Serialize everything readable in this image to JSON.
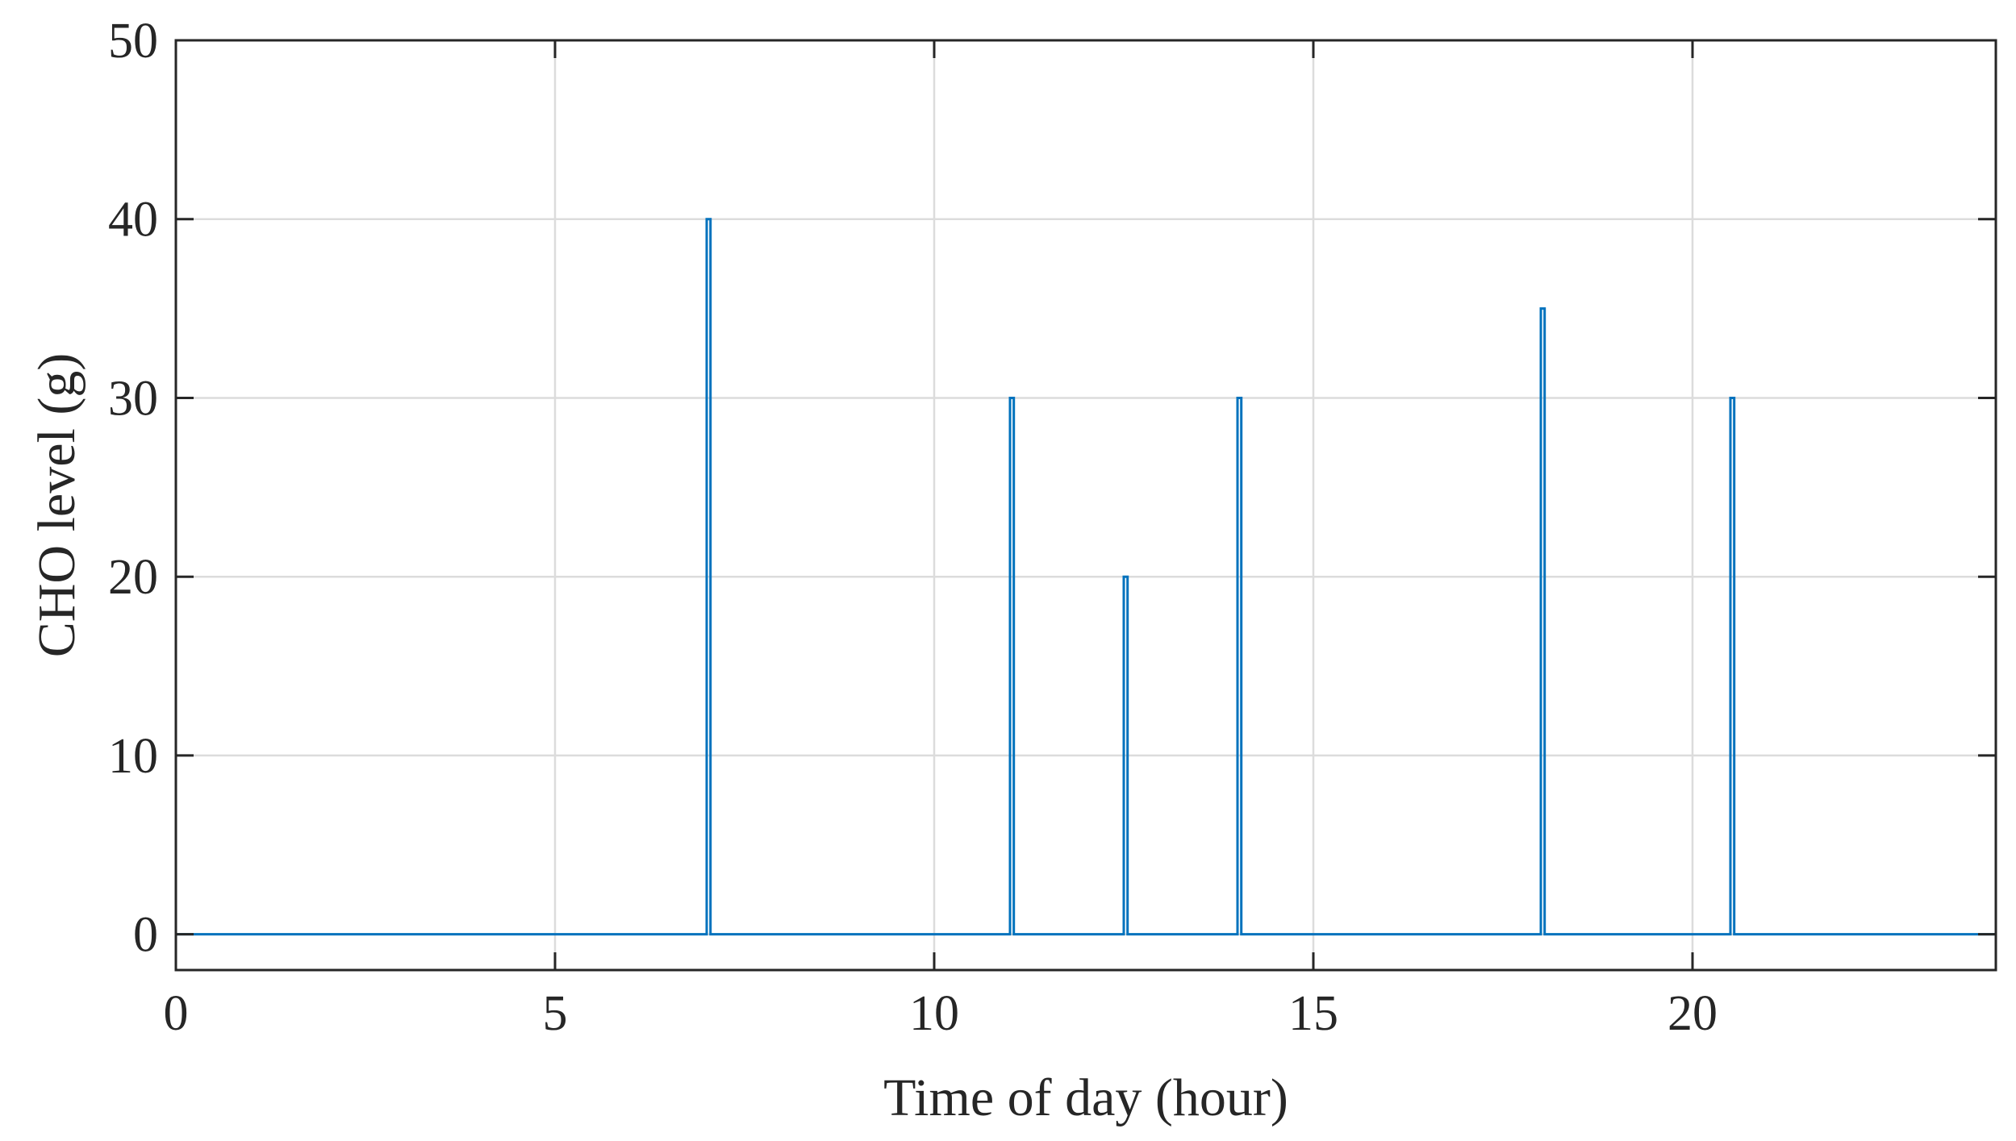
{
  "chart_data": {
    "type": "line",
    "xlabel": "Time of day (hour)",
    "ylabel": "CHO level (g)",
    "xlim": [
      0,
      24
    ],
    "ylim": [
      -2,
      50
    ],
    "xticks": [
      0,
      5,
      10,
      15,
      20
    ],
    "yticks": [
      0,
      10,
      20,
      30,
      40,
      50
    ],
    "grid": true,
    "line_color": "#0072BD",
    "series": [
      {
        "x": [
          0,
          7.0,
          7.0,
          7.05,
          7.05,
          11.0,
          11.0,
          11.05,
          11.05,
          12.5,
          12.5,
          12.55,
          12.55,
          14.0,
          14.0,
          14.05,
          14.05,
          18.0,
          18.0,
          18.05,
          18.05,
          20.5,
          20.5,
          20.55,
          20.55,
          24
        ],
        "values": [
          0,
          0,
          40,
          40,
          0,
          0,
          30,
          30,
          0,
          0,
          20,
          20,
          0,
          0,
          30,
          30,
          0,
          0,
          35,
          35,
          0,
          0,
          30,
          30,
          0,
          0
        ]
      }
    ]
  }
}
